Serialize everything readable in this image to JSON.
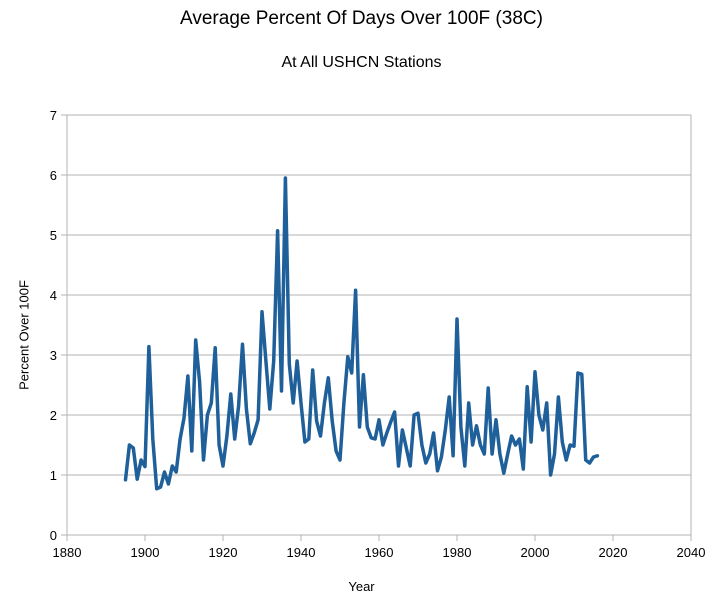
{
  "chart_data": {
    "type": "line",
    "title": "Average Percent Of Days Over 100F (38C)",
    "subtitle": "At All USHCN Stations",
    "xlabel": "Year",
    "ylabel": "Percent Over 100F",
    "xlim": [
      1880,
      2040
    ],
    "ylim": [
      0,
      7
    ],
    "x_ticks": [
      1880,
      1900,
      1920,
      1940,
      1960,
      1980,
      2000,
      2020,
      2040
    ],
    "y_ticks": [
      0,
      1,
      2,
      3,
      4,
      5,
      6,
      7
    ],
    "grid": "horizontal",
    "legend": "none",
    "line_color": "#1f5f9a",
    "series": [
      {
        "x": [
          1895,
          1896,
          1897,
          1898,
          1899,
          1900,
          1901,
          1902,
          1903,
          1904,
          1905,
          1906,
          1907,
          1908,
          1909,
          1910,
          1911,
          1912,
          1913,
          1914,
          1915,
          1916,
          1917,
          1918,
          1919,
          1920,
          1921,
          1922,
          1923,
          1924,
          1925,
          1926,
          1927,
          1928,
          1929,
          1930,
          1931,
          1932,
          1933,
          1934,
          1935,
          1936,
          1937,
          1938,
          1939,
          1940,
          1941,
          1942,
          1943,
          1944,
          1945,
          1946,
          1947,
          1948,
          1949,
          1950,
          1951,
          1952,
          1953,
          1954,
          1955,
          1956,
          1957,
          1958,
          1959,
          1960,
          1961,
          1962,
          1963,
          1964,
          1965,
          1966,
          1967,
          1968,
          1969,
          1970,
          1971,
          1972,
          1973,
          1974,
          1975,
          1976,
          1977,
          1978,
          1979,
          1980,
          1981,
          1982,
          1983,
          1984,
          1985,
          1986,
          1987,
          1988,
          1989,
          1990,
          1991,
          1992,
          1993,
          1994,
          1995,
          1996,
          1997,
          1998,
          1999,
          2000,
          2001,
          2002,
          2003,
          2004,
          2005,
          2006,
          2007,
          2008,
          2009,
          2010,
          2011,
          2012,
          2013,
          2014,
          2015,
          2016
        ],
        "y": [
          0.92,
          1.5,
          1.45,
          0.93,
          1.25,
          1.14,
          3.14,
          1.6,
          0.77,
          0.8,
          1.05,
          0.85,
          1.15,
          1.05,
          1.6,
          1.95,
          2.65,
          1.4,
          3.25,
          2.55,
          1.25,
          2.0,
          2.2,
          3.12,
          1.5,
          1.15,
          1.65,
          2.35,
          1.6,
          2.15,
          3.18,
          2.1,
          1.52,
          1.7,
          1.92,
          3.72,
          2.9,
          2.1,
          2.9,
          5.07,
          2.4,
          5.95,
          2.85,
          2.2,
          2.9,
          2.2,
          1.55,
          1.6,
          2.75,
          1.9,
          1.65,
          2.2,
          2.62,
          1.9,
          1.4,
          1.25,
          2.2,
          2.97,
          2.7,
          4.08,
          1.8,
          2.67,
          1.8,
          1.62,
          1.6,
          1.92,
          1.5,
          1.7,
          1.88,
          2.05,
          1.15,
          1.75,
          1.45,
          1.15,
          2.0,
          2.03,
          1.5,
          1.2,
          1.35,
          1.7,
          1.07,
          1.3,
          1.75,
          2.3,
          1.32,
          3.6,
          1.8,
          1.15,
          2.2,
          1.5,
          1.82,
          1.5,
          1.35,
          2.45,
          1.35,
          1.92,
          1.35,
          1.03,
          1.35,
          1.65,
          1.5,
          1.6,
          1.1,
          2.47,
          1.55,
          2.72,
          2.0,
          1.75,
          2.2,
          1.0,
          1.35,
          2.3,
          1.55,
          1.25,
          1.5,
          1.48,
          2.7,
          2.68,
          1.25,
          1.2,
          1.3,
          1.32
        ]
      }
    ]
  }
}
